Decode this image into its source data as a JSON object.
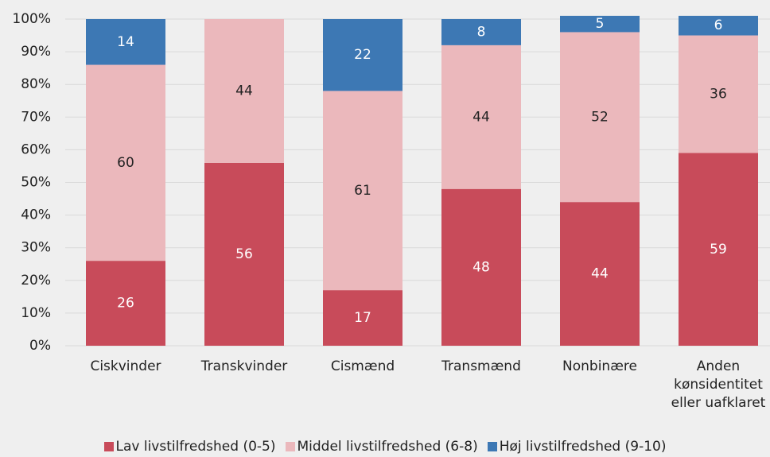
{
  "chart_data": {
    "type": "stacked_bar",
    "categories": [
      "Ciskvinder",
      "Transkvinder",
      "Cismænd",
      "Transmænd",
      "Nonbinære",
      "Anden kønsidentitet eller uafklaret"
    ],
    "series": [
      {
        "name": "Lav livstilfredshed (0-5)",
        "color": "#c84b5a",
        "values": [
          26,
          56,
          17,
          48,
          44,
          59
        ]
      },
      {
        "name": "Middel livstilfredshed (6-8)",
        "color": "#ebb8bc",
        "values": [
          60,
          44,
          61,
          44,
          52,
          36
        ]
      },
      {
        "name": "Høj livstilfredshed (9-10)",
        "color": "#3d78b4",
        "values": [
          14,
          null,
          22,
          8,
          5,
          6
        ]
      }
    ],
    "ylim": [
      0,
      100
    ],
    "yticks": [
      {
        "value": 0,
        "label": "0%"
      },
      {
        "value": 10,
        "label": "10%"
      },
      {
        "value": 20,
        "label": "20%"
      },
      {
        "value": 30,
        "label": "30%"
      },
      {
        "value": 40,
        "label": "40%"
      },
      {
        "value": 50,
        "label": "50%"
      },
      {
        "value": 60,
        "label": "60%"
      },
      {
        "value": 70,
        "label": "70%"
      },
      {
        "value": 80,
        "label": "80%"
      },
      {
        "value": 90,
        "label": "90%"
      },
      {
        "value": 100,
        "label": "100%"
      }
    ],
    "grid": true,
    "legend": "bottom"
  }
}
